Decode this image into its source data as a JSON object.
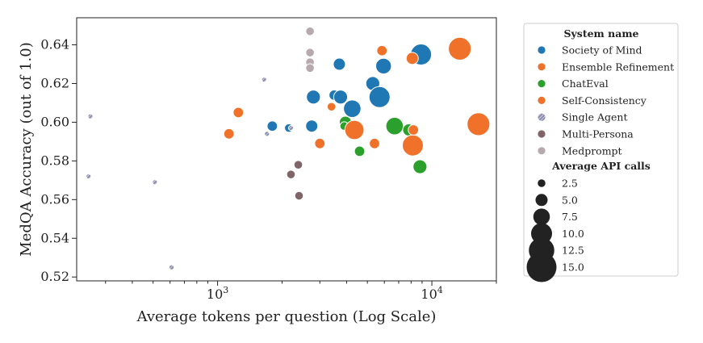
{
  "chart_data": {
    "type": "scatter",
    "xlabel": "Average tokens per question (Log Scale)",
    "ylabel": "MedQA Accuracy (out of 1.0)",
    "x_scale": "log",
    "xlim": [
      220,
      20000
    ],
    "ylim": [
      0.518,
      0.654
    ],
    "x_major_ticks": [
      1000,
      10000
    ],
    "x_tick_labels": [
      {
        "base": "10",
        "exp": "3"
      },
      {
        "base": "10",
        "exp": "4"
      }
    ],
    "y_ticks": [
      0.52,
      0.54,
      0.56,
      0.58,
      0.6,
      0.62,
      0.64
    ],
    "y_tick_labels": [
      "0.52",
      "0.54",
      "0.56",
      "0.58",
      "0.60",
      "0.62",
      "0.64"
    ],
    "grid": false,
    "legend": {
      "placement": "outside-right",
      "title": "System name",
      "size_title": "Average API calls",
      "size_entries": [
        {
          "label": "2.5",
          "calls": 2.5
        },
        {
          "label": "5.0",
          "calls": 5.0
        },
        {
          "label": "7.5",
          "calls": 7.5
        },
        {
          "label": "10.0",
          "calls": 10.0
        },
        {
          "label": "12.5",
          "calls": 12.5
        },
        {
          "label": "15.0",
          "calls": 15.0
        }
      ]
    },
    "series": [
      {
        "name": "Society of Mind",
        "color": "#1f77b4",
        "points": [
          {
            "x": 1800,
            "y": 0.598,
            "calls": 4
          },
          {
            "x": 2150,
            "y": 0.597,
            "calls": 3
          },
          {
            "x": 2750,
            "y": 0.598,
            "calls": 5
          },
          {
            "x": 2800,
            "y": 0.613,
            "calls": 6
          },
          {
            "x": 3500,
            "y": 0.614,
            "calls": 4
          },
          {
            "x": 3750,
            "y": 0.613,
            "calls": 6
          },
          {
            "x": 3700,
            "y": 0.63,
            "calls": 5
          },
          {
            "x": 4250,
            "y": 0.607,
            "calls": 8
          },
          {
            "x": 5300,
            "y": 0.62,
            "calls": 6
          },
          {
            "x": 5700,
            "y": 0.613,
            "calls": 10
          },
          {
            "x": 5950,
            "y": 0.629,
            "calls": 7
          },
          {
            "x": 8900,
            "y": 0.635,
            "calls": 10
          }
        ]
      },
      {
        "name": "Ensemble Refinement",
        "color": "#f0712a",
        "points": [
          {
            "x": 1250,
            "y": 0.605,
            "calls": 4
          },
          {
            "x": 3400,
            "y": 0.608,
            "calls": 3
          },
          {
            "x": 5850,
            "y": 0.637,
            "calls": 4
          },
          {
            "x": 8100,
            "y": 0.633,
            "calls": 5
          },
          {
            "x": 13500,
            "y": 0.638,
            "calls": 11
          }
        ]
      },
      {
        "name": "ChatEval",
        "color": "#2ca02c",
        "points": [
          {
            "x": 3950,
            "y": 0.6,
            "calls": 5
          },
          {
            "x": 3900,
            "y": 0.598,
            "calls": 3
          },
          {
            "x": 4600,
            "y": 0.585,
            "calls": 4
          },
          {
            "x": 6700,
            "y": 0.598,
            "calls": 8
          },
          {
            "x": 7800,
            "y": 0.596,
            "calls": 5
          },
          {
            "x": 8800,
            "y": 0.577,
            "calls": 6
          }
        ]
      },
      {
        "name": "Self-Consistency",
        "color": "#f0712a",
        "points": [
          {
            "x": 1130,
            "y": 0.594,
            "calls": 4
          },
          {
            "x": 3000,
            "y": 0.589,
            "calls": 4
          },
          {
            "x": 4350,
            "y": 0.596,
            "calls": 9
          },
          {
            "x": 5400,
            "y": 0.589,
            "calls": 4
          },
          {
            "x": 8200,
            "y": 0.596,
            "calls": 4
          },
          {
            "x": 8150,
            "y": 0.588,
            "calls": 10
          },
          {
            "x": 16500,
            "y": 0.599,
            "calls": 11
          }
        ]
      },
      {
        "name": "Single Agent",
        "color": "#8f8fb0",
        "hatched": true,
        "points": [
          {
            "x": 255,
            "y": 0.603,
            "calls": 1
          },
          {
            "x": 250,
            "y": 0.572,
            "calls": 1
          },
          {
            "x": 510,
            "y": 0.569,
            "calls": 1
          },
          {
            "x": 610,
            "y": 0.525,
            "calls": 1
          },
          {
            "x": 1650,
            "y": 0.622,
            "calls": 1
          },
          {
            "x": 1700,
            "y": 0.594,
            "calls": 1
          },
          {
            "x": 2200,
            "y": 0.597,
            "calls": 1
          }
        ]
      },
      {
        "name": "Multi-Persona",
        "color": "#7f6468",
        "points": [
          {
            "x": 2200,
            "y": 0.573,
            "calls": 3
          },
          {
            "x": 2380,
            "y": 0.578,
            "calls": 3
          },
          {
            "x": 2400,
            "y": 0.562,
            "calls": 3
          }
        ]
      },
      {
        "name": "Medprompt",
        "color": "#b7a9ae",
        "points": [
          {
            "x": 2700,
            "y": 0.647,
            "calls": 3
          },
          {
            "x": 2700,
            "y": 0.636,
            "calls": 3
          },
          {
            "x": 2700,
            "y": 0.631,
            "calls": 3
          },
          {
            "x": 2700,
            "y": 0.628,
            "calls": 3
          }
        ]
      }
    ]
  }
}
